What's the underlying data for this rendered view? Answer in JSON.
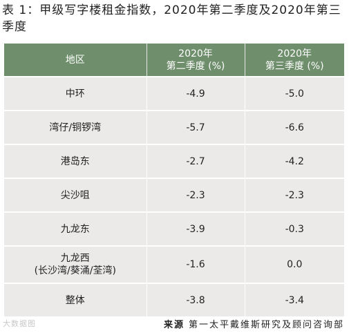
{
  "title": "表 1：甲级写字楼租金指数，2020年第二季度及2020年第三季度",
  "table": {
    "headers": {
      "district": "地区",
      "q2_line1": "2020年",
      "q2_line2": "第二季度 (%)",
      "q3_line1": "2020年",
      "q3_line2": "第三季度 (%)"
    },
    "rows": [
      {
        "district": "中环",
        "q2": "-4.9",
        "q3": "-5.0"
      },
      {
        "district": "湾仔/铜锣湾",
        "q2": "-5.7",
        "q3": "-6.6"
      },
      {
        "district": "港岛东",
        "q2": "-2.7",
        "q3": "-4.2"
      },
      {
        "district": "尖沙咀",
        "q2": "-2.3",
        "q3": "-2.3"
      },
      {
        "district": "九龙东",
        "q2": "-3.9",
        "q3": "-0.3"
      },
      {
        "district": "九龙西",
        "district_sub": "(长沙湾/葵涌/荃湾)",
        "q2": "-1.6",
        "q3": "0.0"
      },
      {
        "district": "整体",
        "q2": "-3.8",
        "q3": "-3.4"
      }
    ]
  },
  "footer": {
    "source_label": "来源",
    "source_text": "第一太平戴维斯研究及顾问咨询部",
    "watermark": "大数据图"
  },
  "colors": {
    "header_bg": "#6f8f6c",
    "row_bg": "#ebeae9",
    "text": "#222222"
  }
}
